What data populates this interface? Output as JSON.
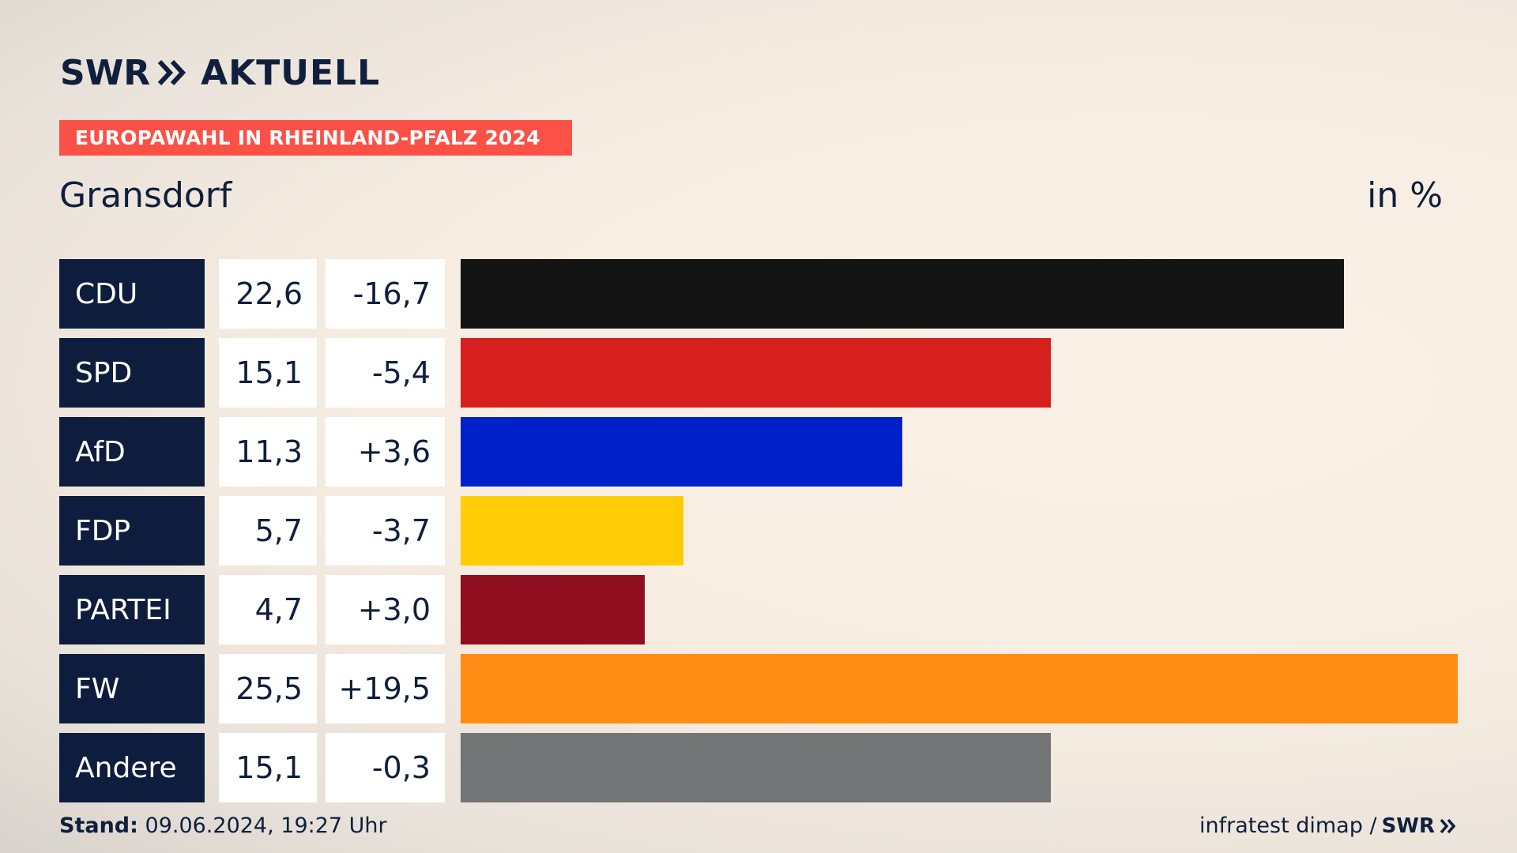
{
  "header": {
    "logo_swr": "SWR",
    "logo_aktuell": "AKTUELL",
    "banner": "EUROPAWAHL IN RHEINLAND-PFALZ 2024",
    "place": "Gransdorf",
    "unit": "in %"
  },
  "footer": {
    "stand_label": "Stand:",
    "stand_value": "09.06.2024, 19:27 Uhr",
    "source": "infratest dimap /",
    "source_logo": "SWR"
  },
  "colors": {
    "navy": "#0e1d3d",
    "banner": "#fb5147"
  },
  "chart_data": {
    "type": "bar",
    "orientation": "horizontal",
    "unit": "in %",
    "categories": [
      "CDU",
      "SPD",
      "AfD",
      "FDP",
      "PARTEI",
      "FW",
      "Andere"
    ],
    "values": [
      22.6,
      15.1,
      11.3,
      5.7,
      4.7,
      25.5,
      15.1
    ],
    "value_labels": [
      "22,6",
      "15,1",
      "11,3",
      "5,7",
      "4,7",
      "25,5",
      "15,1"
    ],
    "changes": [
      -16.7,
      -5.4,
      3.6,
      -3.7,
      3.0,
      19.5,
      -0.3
    ],
    "change_labels": [
      "-16,7",
      "-5,4",
      "+3,6",
      "-3,7",
      "+3,0",
      "+19,5",
      "-0,3"
    ],
    "bar_colors": [
      "#141414",
      "#d81f1f",
      "#0021c9",
      "#ffcc05",
      "#8f0f20",
      "#ff8c14",
      "#737475"
    ],
    "grid": false
  }
}
